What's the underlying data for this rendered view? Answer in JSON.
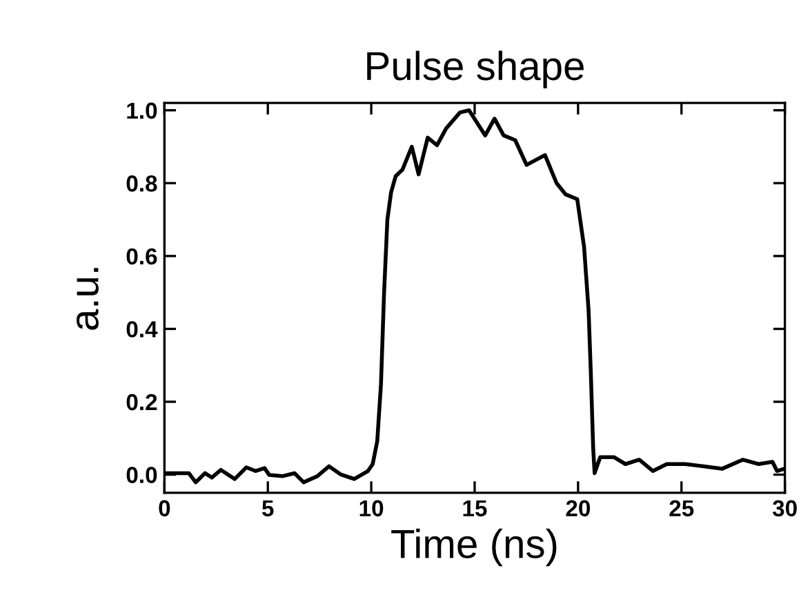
{
  "chart_data": {
    "type": "line",
    "title": "Pulse shape",
    "xlabel": "Time (ns)",
    "ylabel": "a.u.",
    "xlim": [
      0,
      30
    ],
    "xticks": [
      0,
      5,
      10,
      15,
      20,
      25,
      30
    ],
    "ylim": [
      -0.05,
      1.02
    ],
    "yticks": [
      {
        "value": 0,
        "label": "0.0"
      },
      {
        "value": 0.2,
        "label": "0.2"
      },
      {
        "value": 0.4,
        "label": "0.4"
      },
      {
        "value": 0.6,
        "label": "0.6"
      },
      {
        "value": 0.8,
        "label": "0.8"
      },
      {
        "value": 1,
        "label": "1.0"
      }
    ],
    "grid": false,
    "legend": false,
    "marker": "none",
    "line_style": "solid",
    "series": [
      {
        "color": "#000000",
        "x": [
          0.07,
          1.18,
          1.51,
          1.96,
          2.29,
          2.73,
          3.4,
          3.96,
          4.4,
          4.84,
          5.07,
          5.73,
          6.29,
          6.73,
          7.4,
          7.96,
          8.51,
          9.18,
          9.84,
          10.07,
          10.29,
          10.47,
          10.62,
          10.78,
          10.96,
          11.18,
          11.51,
          11.96,
          12.29,
          12.73,
          13.18,
          13.62,
          14.29,
          14.73,
          15.51,
          15.96,
          16.4,
          16.96,
          17.51,
          18.4,
          18.96,
          19.4,
          19.96,
          20.29,
          20.51,
          20.62,
          20.73,
          20.8,
          21.07,
          21.73,
          22.29,
          22.96,
          23.62,
          24.29,
          25.18,
          26.07,
          26.96,
          27.96,
          28.73,
          29.4,
          29.62,
          29.96
        ],
        "values": [
          0.004,
          0.004,
          -0.021,
          0.004,
          -0.008,
          0.013,
          -0.012,
          0.02,
          0.01,
          0.018,
          -0.001,
          -0.004,
          0.004,
          -0.021,
          -0.004,
          0.023,
          0.001,
          -0.012,
          0.01,
          0.029,
          0.092,
          0.248,
          0.499,
          0.7,
          0.775,
          0.819,
          0.837,
          0.9,
          0.824,
          0.925,
          0.904,
          0.95,
          0.994,
          1.0,
          0.931,
          0.977,
          0.931,
          0.918,
          0.85,
          0.877,
          0.8,
          0.769,
          0.756,
          0.625,
          0.449,
          0.274,
          0.073,
          0.004,
          0.048,
          0.048,
          0.029,
          0.041,
          0.01,
          0.029,
          0.029,
          0.023,
          0.016,
          0.041,
          0.029,
          0.035,
          0.01,
          0.016
        ]
      }
    ]
  }
}
